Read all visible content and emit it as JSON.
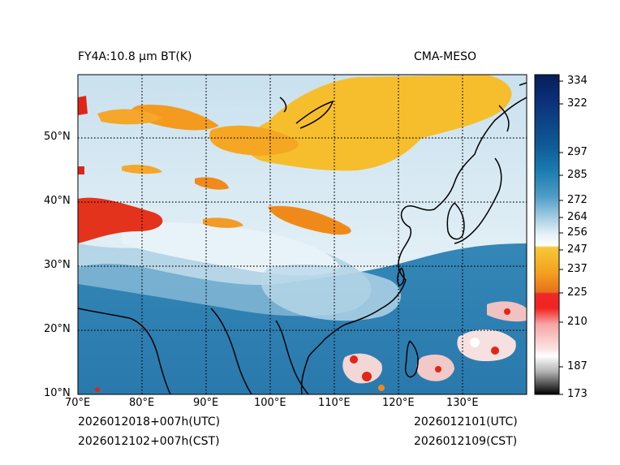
{
  "header": {
    "left_title": "FY4A:10.8 µm BT(K)",
    "right_title": "CMA-MESO"
  },
  "map": {
    "lon_labels": [
      "70°E",
      "80°E",
      "90°E",
      "100°E",
      "110°E",
      "120°E",
      "130°E"
    ],
    "lat_labels": [
      "50°N",
      "40°N",
      "30°N",
      "20°N",
      "10°N"
    ],
    "lon_range": [
      70,
      140
    ],
    "lat_range": [
      10,
      60
    ],
    "colors": {
      "ocean": "#2e7fb0",
      "cloud_white": "#e8f2f8",
      "cold_orange": "#f6b21e",
      "deep_red": "#e02616",
      "coast": "#000000"
    }
  },
  "colorbar": {
    "ticks": [
      "334",
      "322",
      "297",
      "285",
      "272",
      "264",
      "256",
      "247",
      "237",
      "225",
      "210",
      "187",
      "173"
    ],
    "tick_values": [
      334,
      322,
      297,
      285,
      272,
      264,
      256,
      247,
      237,
      225,
      210,
      187,
      173
    ]
  },
  "footer": {
    "init_utc": "2026012018+007h(UTC)",
    "init_cst": "2026012102+007h(CST)",
    "valid_utc": "2026012101(UTC)",
    "valid_cst": "2026012109(CST)"
  }
}
